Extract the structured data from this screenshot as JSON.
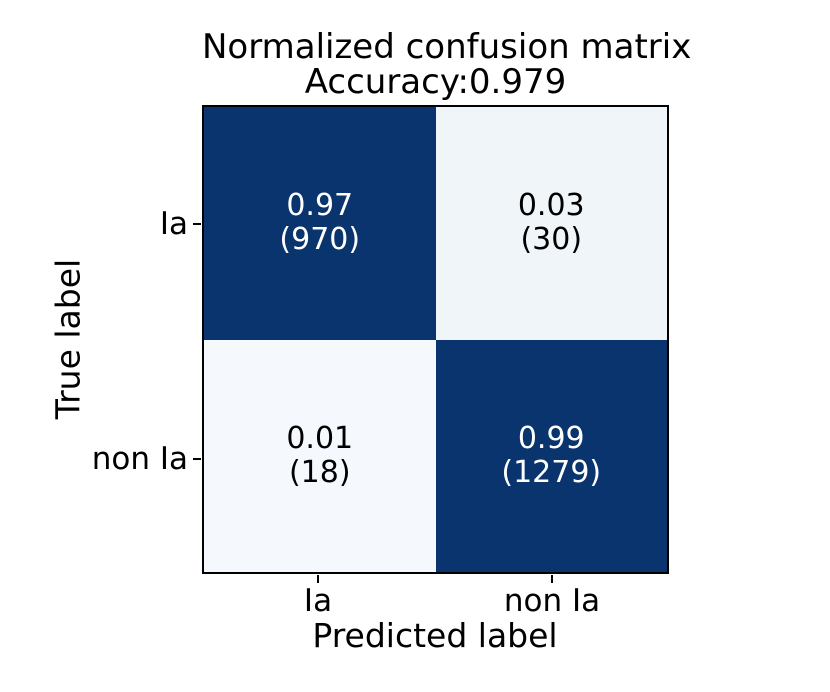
{
  "title": {
    "line1": "Normalized confusion matrix",
    "line2": "Accuracy:0.979"
  },
  "axes": {
    "xlabel": "Predicted label",
    "ylabel": "True label",
    "xticks": [
      "Ia",
      "non Ia"
    ],
    "yticks": [
      "Ia",
      "non Ia"
    ]
  },
  "cells": [
    {
      "value": "0.97",
      "count": "(970)",
      "bg": "#0a346e",
      "fg": "#ffffff"
    },
    {
      "value": "0.03",
      "count": "(30)",
      "bg": "#f0f5fa",
      "fg": "#000000"
    },
    {
      "value": "0.01",
      "count": "(18)",
      "bg": "#f5f9fd",
      "fg": "#000000"
    },
    {
      "value": "0.99",
      "count": "(1279)",
      "bg": "#0a346e",
      "fg": "#ffffff"
    }
  ],
  "colors": {
    "background": "#ffffff",
    "cell_dark": "#0a346e",
    "cell_light": "#f0f5fa",
    "border": "#000000",
    "text_on_dark": "#ffffff",
    "text_on_light": "#000000"
  },
  "chart_data": {
    "type": "heatmap",
    "title": "Normalized confusion matrix",
    "subtitle": "Accuracy:0.979",
    "accuracy": 0.979,
    "xlabel": "Predicted label",
    "ylabel": "True label",
    "x_categories": [
      "Ia",
      "non Ia"
    ],
    "y_categories": [
      "Ia",
      "non Ia"
    ],
    "normalized_values": [
      [
        0.97,
        0.03
      ],
      [
        0.01,
        0.99
      ]
    ],
    "counts": [
      [
        970,
        30
      ],
      [
        18,
        1279
      ]
    ],
    "value_range": [
      0,
      1
    ],
    "colormap": "Blues",
    "grid": false,
    "legend_position": "none"
  }
}
